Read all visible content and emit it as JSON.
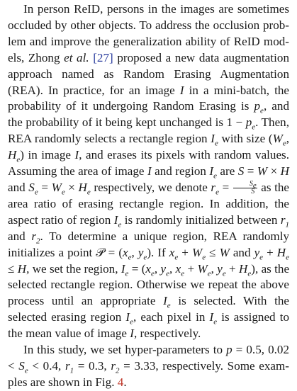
{
  "paragraphs": [
    {
      "id": "para-rea",
      "segments": [
        {
          "t": "In person ReID, persons in the images are sometimes occluded by other objects. To address the occlusion prob­lem and improve the generalization ability of ReID mod­els, Zhong "
        },
        {
          "t": "et al.",
          "i": true
        },
        {
          "t": " "
        },
        {
          "t": "[27]",
          "ref": true
        },
        {
          "t": " proposed a new data augmentation approach named as Random Erasing Augmentation (REA). In practice, for an image "
        },
        {
          "t": "I",
          "m": true
        },
        {
          "t": " in a mini-batch, the probability of it undergoing Random Erasing is "
        },
        {
          "t": "p",
          "m": true
        },
        {
          "t": "e",
          "sub": true
        },
        {
          "t": ", and the probabil­ity of it being kept unchanged is 1 − "
        },
        {
          "t": "p",
          "m": true
        },
        {
          "t": "e",
          "sub": true
        },
        {
          "t": ". Then, REA ran­domly selects a rectangle region "
        },
        {
          "t": "I",
          "m": true
        },
        {
          "t": "e",
          "sub": true
        },
        {
          "t": " with size ("
        },
        {
          "t": "W",
          "m": true
        },
        {
          "t": "e",
          "sub": true
        },
        {
          "t": ", "
        },
        {
          "t": "H",
          "m": true
        },
        {
          "t": "e",
          "sub": true
        },
        {
          "t": ") in image "
        },
        {
          "t": "I",
          "m": true
        },
        {
          "t": ", and erases its pixels with random values. Assum­ing the area of image "
        },
        {
          "t": "I",
          "m": true
        },
        {
          "t": " and region "
        },
        {
          "t": "I",
          "m": true
        },
        {
          "t": "e",
          "sub": true
        },
        {
          "t": " are "
        },
        {
          "t": "S",
          "m": true
        },
        {
          "t": " = "
        },
        {
          "t": "W",
          "m": true
        },
        {
          "t": " × "
        },
        {
          "t": "H",
          "m": true
        },
        {
          "t": " and "
        },
        {
          "t": "S",
          "m": true
        },
        {
          "t": "e",
          "sub": true
        },
        {
          "t": " = "
        },
        {
          "t": "W",
          "m": true
        },
        {
          "t": "e",
          "sub": true
        },
        {
          "t": " × "
        },
        {
          "t": "H",
          "m": true
        },
        {
          "t": "e",
          "sub": true
        },
        {
          "t": " respectively, we denote "
        },
        {
          "t": "r",
          "m": true
        },
        {
          "t": "e",
          "sub": true
        },
        {
          "t": " = "
        },
        {
          "frac": [
            "Se",
            "S"
          ]
        },
        {
          "t": " as the area ratio of erasing rectangle region. In addition, the aspect ra­tio of region "
        },
        {
          "t": "I",
          "m": true
        },
        {
          "t": "e",
          "sub": true
        },
        {
          "t": " is randomly initialized between "
        },
        {
          "t": "r",
          "m": true
        },
        {
          "t": "1",
          "sub": true
        },
        {
          "t": " and "
        },
        {
          "t": "r",
          "m": true
        },
        {
          "t": "2",
          "sub": true
        },
        {
          "t": ". To determine a unique region, REA randomly initializes a point 𝒫 = ("
        },
        {
          "t": "x",
          "m": true
        },
        {
          "t": "e",
          "sub": true
        },
        {
          "t": ", "
        },
        {
          "t": "y",
          "m": true
        },
        {
          "t": "e",
          "sub": true
        },
        {
          "t": "). If "
        },
        {
          "t": "x",
          "m": true
        },
        {
          "t": "e",
          "sub": true
        },
        {
          "t": " + "
        },
        {
          "t": "W",
          "m": true
        },
        {
          "t": "e",
          "sub": true
        },
        {
          "t": " ≤ "
        },
        {
          "t": "W",
          "m": true
        },
        {
          "t": " and "
        },
        {
          "t": "y",
          "m": true
        },
        {
          "t": "e",
          "sub": true
        },
        {
          "t": " + "
        },
        {
          "t": "H",
          "m": true
        },
        {
          "t": "e",
          "sub": true
        },
        {
          "t": " ≤ "
        },
        {
          "t": "H",
          "m": true
        },
        {
          "t": ", we set the region, "
        },
        {
          "t": "I",
          "m": true
        },
        {
          "t": "e",
          "sub": true
        },
        {
          "t": " = ("
        },
        {
          "t": "x",
          "m": true
        },
        {
          "t": "e",
          "sub": true
        },
        {
          "t": ", "
        },
        {
          "t": "y",
          "m": true
        },
        {
          "t": "e",
          "sub": true
        },
        {
          "t": ", "
        },
        {
          "t": "x",
          "m": true
        },
        {
          "t": "e",
          "sub": true
        },
        {
          "t": " + "
        },
        {
          "t": "W",
          "m": true
        },
        {
          "t": "e",
          "sub": true
        },
        {
          "t": ", "
        },
        {
          "t": "y",
          "m": true
        },
        {
          "t": "e",
          "sub": true
        },
        {
          "t": " + "
        },
        {
          "t": "H",
          "m": true
        },
        {
          "t": "e",
          "sub": true
        },
        {
          "t": "), as the selected rectangle region. Otherwise we repeat the above process until an appropriate "
        },
        {
          "t": "I",
          "m": true
        },
        {
          "t": "e",
          "sub": true
        },
        {
          "t": " is selected. With the selected erasing region "
        },
        {
          "t": "I",
          "m": true
        },
        {
          "t": "e",
          "sub": true
        },
        {
          "t": ", each pixel in "
        },
        {
          "t": "I",
          "m": true
        },
        {
          "t": "e",
          "sub": true
        },
        {
          "t": " is assigned to the mean value of image "
        },
        {
          "t": "I",
          "m": true
        },
        {
          "t": ", respectively."
        }
      ]
    },
    {
      "id": "para-study",
      "segments": [
        {
          "t": "In this study, we set hyper-parameters to "
        },
        {
          "t": "p",
          "m": true
        },
        {
          "t": " = 0.5, 0.02 < "
        },
        {
          "t": "S",
          "m": true
        },
        {
          "t": "e",
          "sub": true
        },
        {
          "t": " < 0.4, "
        },
        {
          "t": "r",
          "m": true
        },
        {
          "t": "1",
          "sub": true
        },
        {
          "t": " = 0.3, "
        },
        {
          "t": "r",
          "m": true
        },
        {
          "t": "2",
          "sub": true
        },
        {
          "t": " = 3.33, respectively. Some exam­ples are shown in Fig. "
        },
        {
          "t": "4",
          "fig": true
        },
        {
          "t": "."
        }
      ]
    }
  ]
}
